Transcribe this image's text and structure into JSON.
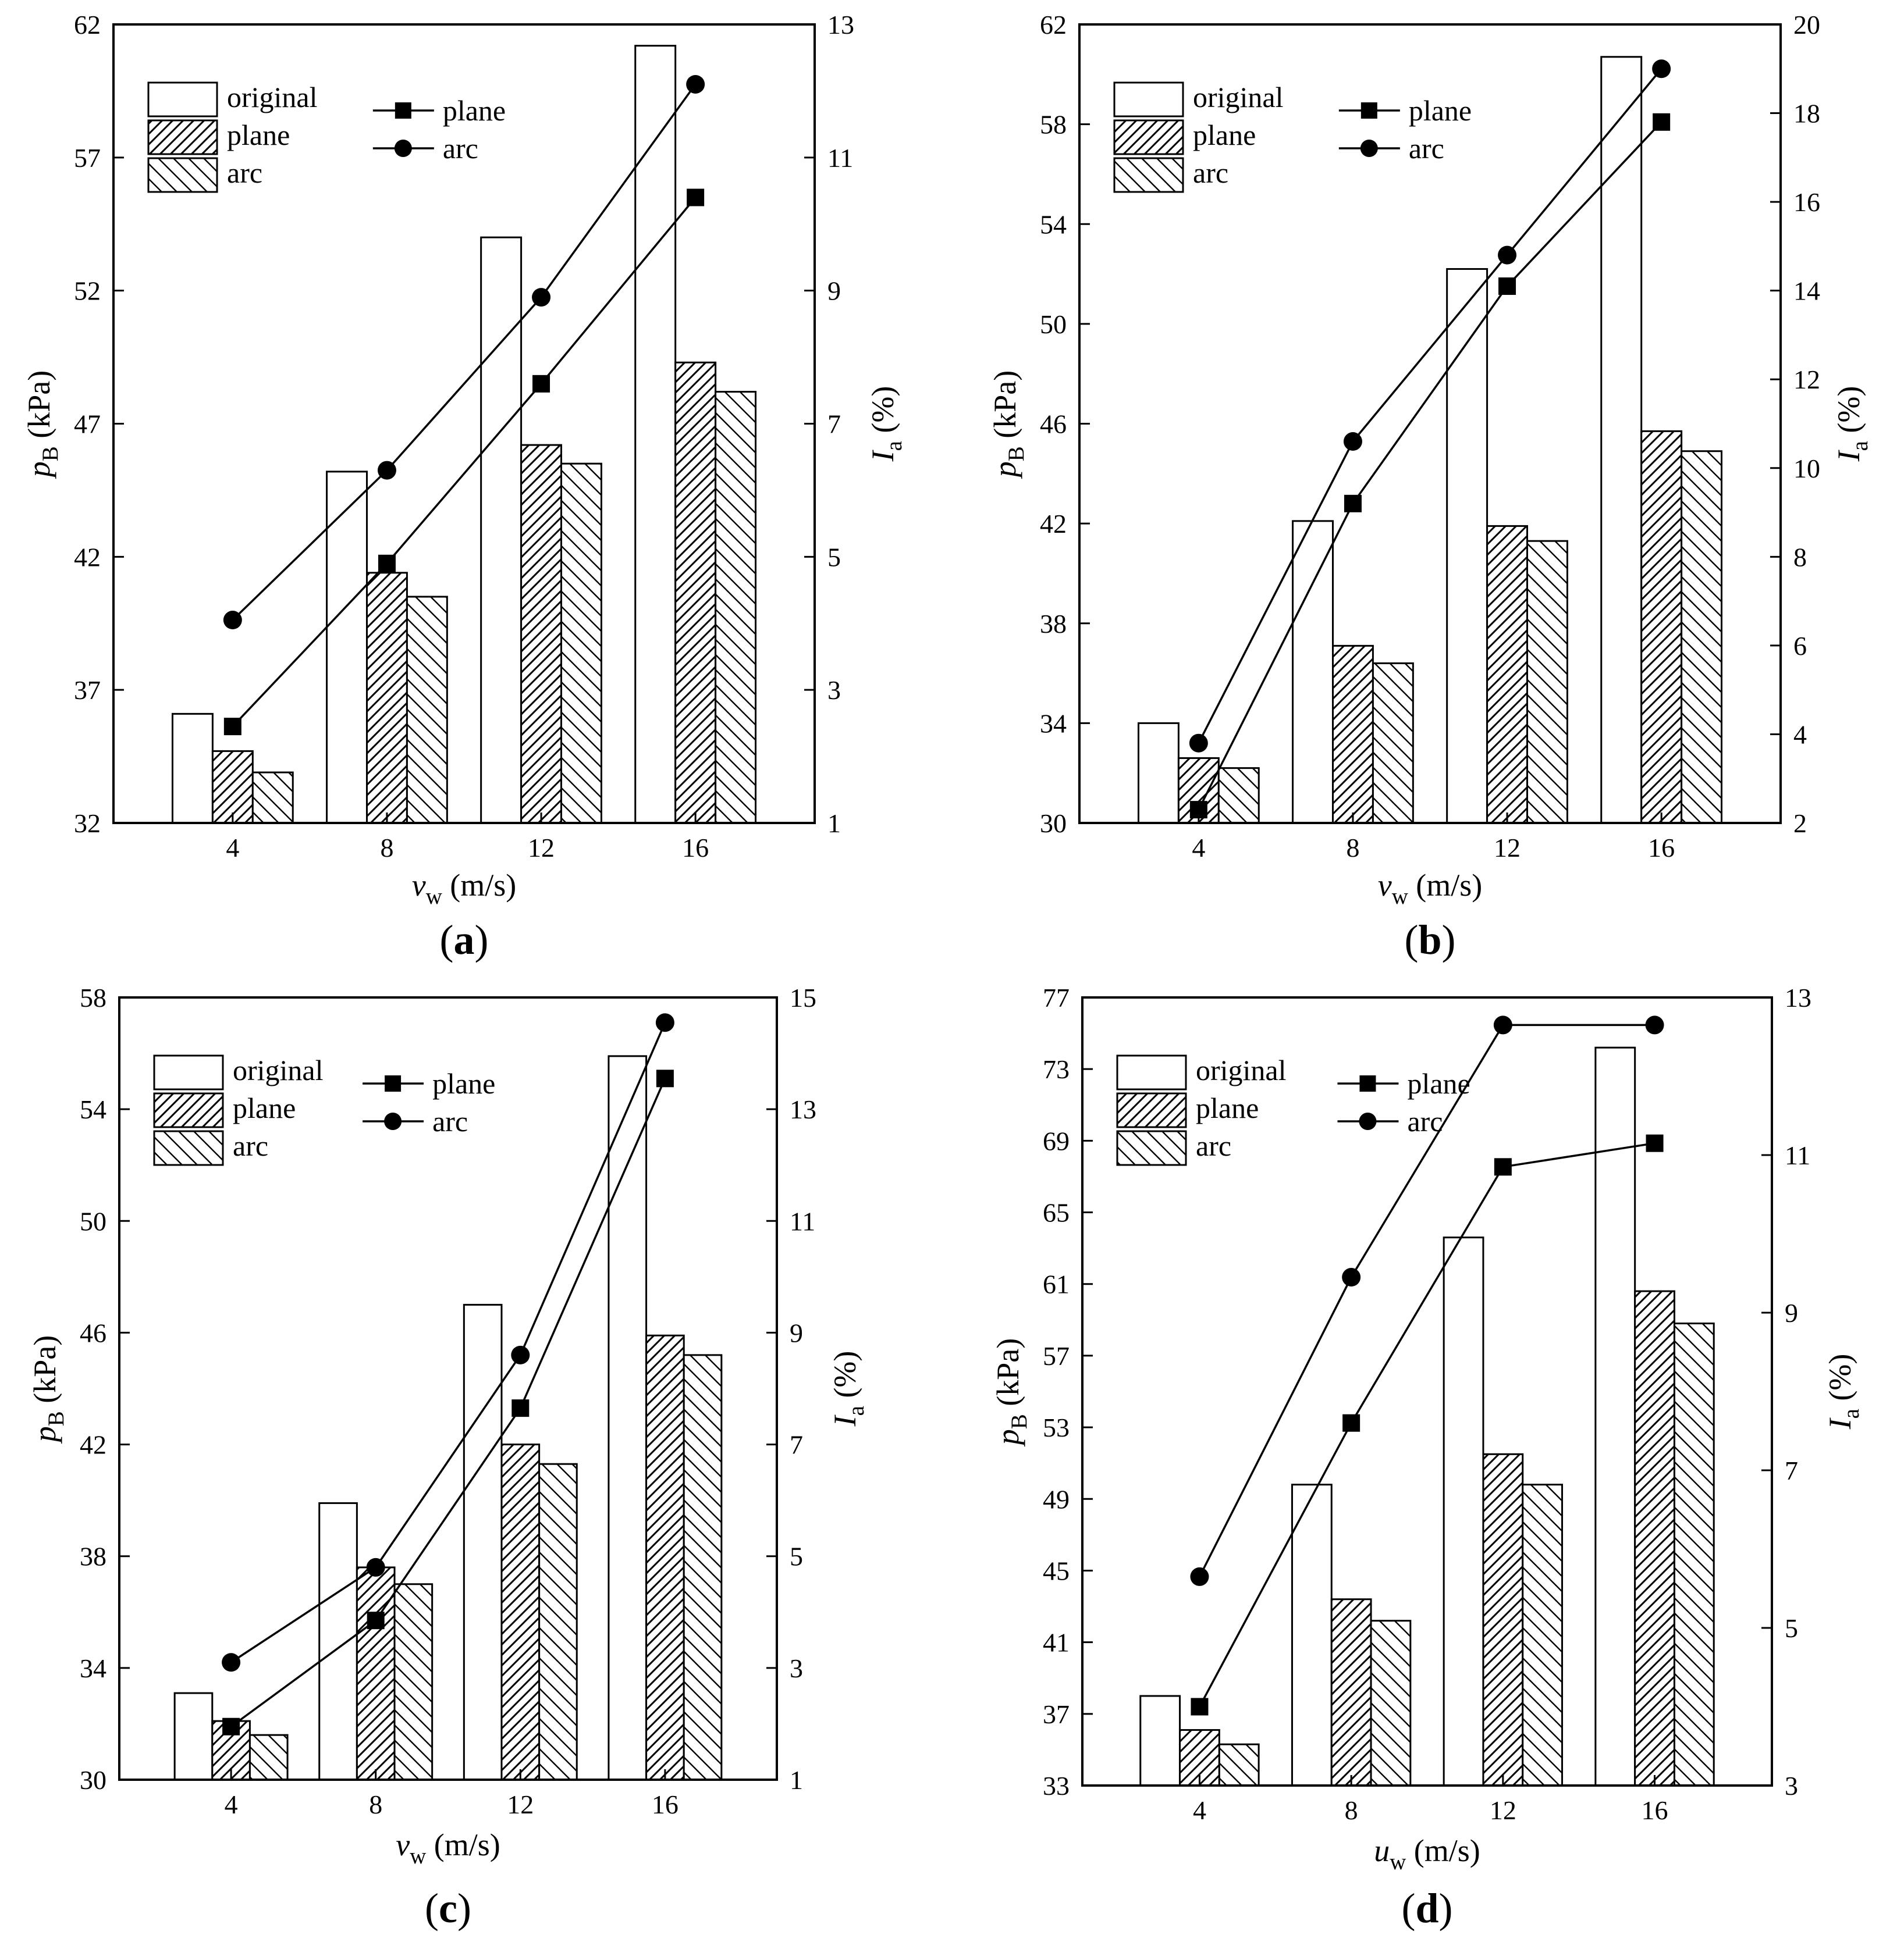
{
  "figure": {
    "panels": [
      "a",
      "b",
      "c",
      "d"
    ]
  },
  "chart_data": [
    {
      "id": "a",
      "type": "bar",
      "panel_label": "a",
      "categories": [
        "4",
        "8",
        "12",
        "16"
      ],
      "xlabel": {
        "var": "v",
        "sub": "w",
        "unit": " (m/s)"
      },
      "ylabel": {
        "var": "p",
        "sub": "B",
        "unit": " (kPa)"
      },
      "ylabel_right": {
        "var": "I",
        "sub": "a",
        "unit": " (%)"
      },
      "ylim": [
        32,
        62
      ],
      "yticks": [
        32,
        37,
        42,
        47,
        52,
        57,
        62
      ],
      "ylim_right": [
        1,
        13
      ],
      "yticks_right": [
        1,
        3,
        5,
        7,
        9,
        11,
        13
      ],
      "bar_series": [
        {
          "name": "original",
          "pattern": "none",
          "values": [
            36.1,
            45.2,
            54.0,
            61.2
          ]
        },
        {
          "name": "plane",
          "pattern": "back",
          "values": [
            34.7,
            41.4,
            46.2,
            49.3
          ]
        },
        {
          "name": "arc",
          "pattern": "fwd",
          "values": [
            33.9,
            40.5,
            45.5,
            48.2
          ]
        }
      ],
      "line_series": [
        {
          "name": "plane",
          "marker": "square",
          "axis": "right",
          "values": [
            2.45,
            4.9,
            7.6,
            10.4
          ]
        },
        {
          "name": "arc",
          "marker": "circle",
          "axis": "right",
          "values": [
            4.05,
            6.3,
            8.9,
            12.1
          ]
        }
      ]
    },
    {
      "id": "b",
      "type": "bar",
      "panel_label": "b",
      "categories": [
        "4",
        "8",
        "12",
        "16"
      ],
      "xlabel": {
        "var": "v",
        "sub": "w",
        "unit": " (m/s)"
      },
      "ylabel": {
        "var": "p",
        "sub": "B",
        "unit": " (kPa)"
      },
      "ylabel_right": {
        "var": "I",
        "sub": "a",
        "unit": " (%)"
      },
      "ylim": [
        30,
        62
      ],
      "yticks": [
        30,
        34,
        38,
        42,
        46,
        50,
        54,
        58,
        62
      ],
      "ylim_right": [
        2,
        20
      ],
      "yticks_right": [
        2,
        4,
        6,
        8,
        10,
        12,
        14,
        16,
        18,
        20
      ],
      "bar_series": [
        {
          "name": "original",
          "pattern": "none",
          "values": [
            34.0,
            42.1,
            52.2,
            60.7
          ]
        },
        {
          "name": "plane",
          "pattern": "back",
          "values": [
            32.6,
            37.1,
            41.9,
            45.7
          ]
        },
        {
          "name": "arc",
          "pattern": "fwd",
          "values": [
            32.2,
            36.4,
            41.3,
            44.9
          ]
        }
      ],
      "line_series": [
        {
          "name": "plane",
          "marker": "square",
          "axis": "right",
          "values": [
            2.3,
            9.2,
            14.1,
            17.8
          ]
        },
        {
          "name": "arc",
          "marker": "circle",
          "axis": "right",
          "values": [
            3.8,
            10.6,
            14.8,
            19.0
          ]
        }
      ]
    },
    {
      "id": "c",
      "type": "bar",
      "panel_label": "c",
      "categories": [
        "4",
        "8",
        "12",
        "16"
      ],
      "xlabel": {
        "var": "v",
        "sub": "w",
        "unit": " (m/s)"
      },
      "ylabel": {
        "var": "p",
        "sub": "B",
        "unit": " (kPa)"
      },
      "ylabel_right": {
        "var": "I",
        "sub": "a",
        "unit": " (%)"
      },
      "ylim": [
        30,
        58
      ],
      "yticks": [
        30,
        34,
        38,
        42,
        46,
        50,
        54,
        58
      ],
      "ylim_right": [
        1,
        15
      ],
      "yticks_right": [
        1,
        3,
        5,
        7,
        9,
        11,
        13,
        15
      ],
      "bar_series": [
        {
          "name": "original",
          "pattern": "none",
          "values": [
            33.1,
            39.9,
            47.0,
            55.9
          ]
        },
        {
          "name": "plane",
          "pattern": "back",
          "values": [
            32.1,
            37.6,
            42.0,
            45.9
          ]
        },
        {
          "name": "arc",
          "pattern": "fwd",
          "values": [
            31.6,
            37.0,
            41.3,
            45.2
          ]
        }
      ],
      "line_series": [
        {
          "name": "plane",
          "marker": "square",
          "axis": "right",
          "values": [
            1.95,
            3.85,
            7.65,
            13.55
          ]
        },
        {
          "name": "arc",
          "marker": "circle",
          "axis": "right",
          "values": [
            3.1,
            4.8,
            8.6,
            14.55
          ]
        }
      ]
    },
    {
      "id": "d",
      "type": "bar",
      "panel_label": "d",
      "categories": [
        "4",
        "8",
        "12",
        "16"
      ],
      "xlabel": {
        "var": "u",
        "sub": "w",
        "unit": " (m/s)"
      },
      "ylabel": {
        "var": "p",
        "sub": "B",
        "unit": " (kPa)"
      },
      "ylabel_right": {
        "var": "I",
        "sub": "a",
        "unit": " (%)"
      },
      "ylim": [
        33,
        77
      ],
      "yticks": [
        33,
        37,
        41,
        45,
        49,
        53,
        57,
        61,
        65,
        69,
        73,
        77
      ],
      "ylim_right": [
        3,
        13
      ],
      "yticks_right": [
        3,
        5,
        7,
        9,
        11,
        13
      ],
      "bar_series": [
        {
          "name": "original",
          "pattern": "none",
          "values": [
            38.0,
            49.8,
            63.6,
            74.2
          ]
        },
        {
          "name": "plane",
          "pattern": "back",
          "values": [
            36.1,
            43.4,
            51.5,
            60.6
          ]
        },
        {
          "name": "arc",
          "pattern": "fwd",
          "values": [
            35.3,
            42.2,
            49.8,
            58.8
          ]
        }
      ],
      "line_series": [
        {
          "name": "plane",
          "marker": "square",
          "axis": "right",
          "values": [
            4.0,
            7.6,
            10.85,
            11.15
          ]
        },
        {
          "name": "arc",
          "marker": "circle",
          "axis": "right",
          "values": [
            5.65,
            9.45,
            12.65,
            12.65
          ]
        }
      ]
    }
  ]
}
